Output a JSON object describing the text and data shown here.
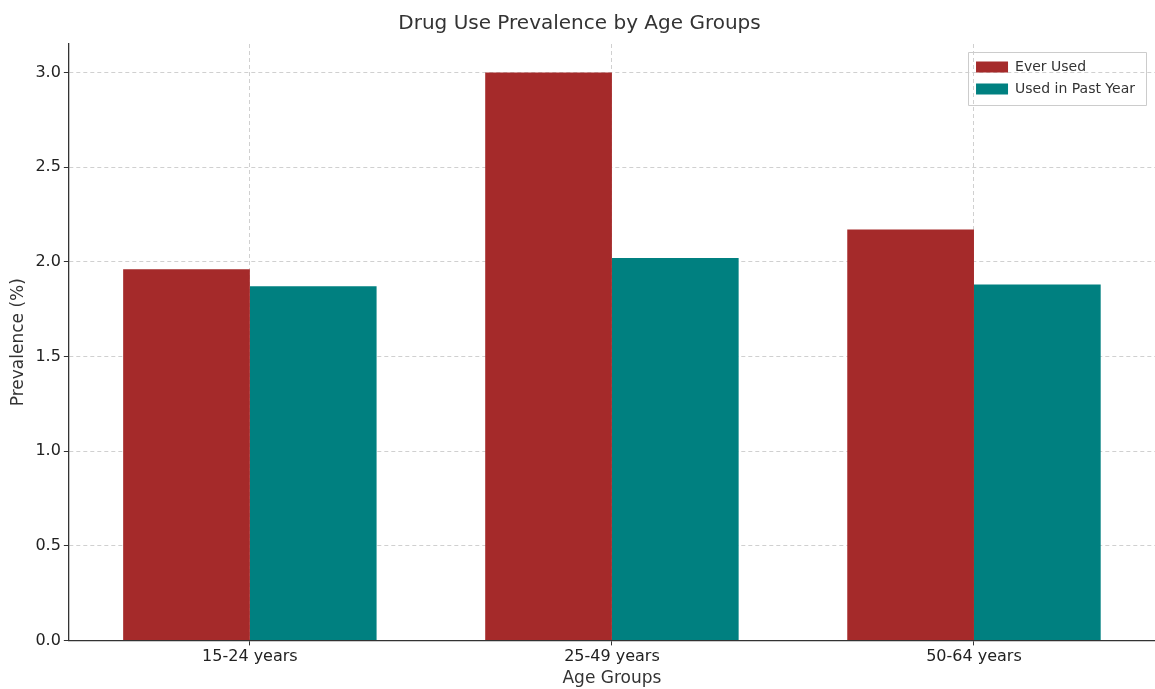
{
  "chart_data": {
    "type": "bar",
    "title": "Drug Use Prevalence by Age Groups",
    "xlabel": "Age Groups",
    "ylabel": "Prevalence (%)",
    "categories": [
      "15-24 years",
      "25-49 years",
      "50-64 years"
    ],
    "series": [
      {
        "name": "Ever Used",
        "color": "#a52a2a",
        "values": [
          1.96,
          3.0,
          2.17
        ]
      },
      {
        "name": "Used in Past Year",
        "color": "#008080",
        "values": [
          1.87,
          2.02,
          1.88
        ]
      }
    ],
    "ylim": [
      0,
      3.15
    ],
    "yticks": [
      {
        "value": 0,
        "label": "0.0"
      },
      {
        "value": 0.5,
        "label": "0.5"
      },
      {
        "value": 1,
        "label": "1.0"
      },
      {
        "value": 1.5,
        "label": "1.5"
      },
      {
        "value": 2,
        "label": "2.0"
      },
      {
        "value": 2.5,
        "label": "2.5"
      },
      {
        "value": 3,
        "label": "3.0"
      }
    ],
    "grid": true,
    "legend": "top right"
  }
}
